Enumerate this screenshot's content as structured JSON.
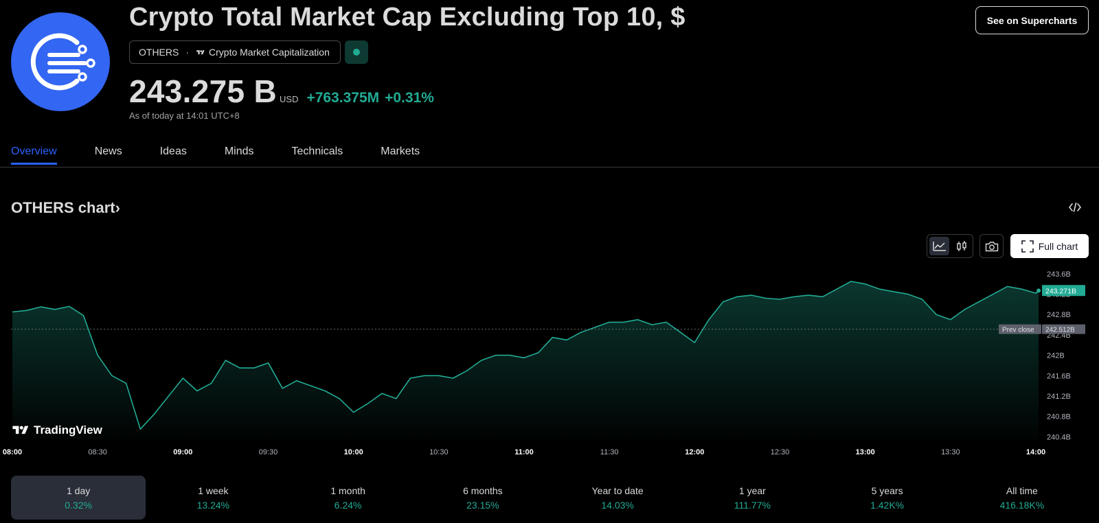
{
  "header": {
    "title": "Crypto Total Market Cap Excluding Top 10, $",
    "symbol": "OTHERS",
    "separator": "·",
    "source": "Crypto Market Capitalization",
    "price": "243.275",
    "price_suffix": "B",
    "currency": "USD",
    "change_abs": "+763.375M",
    "change_pct": "+0.31%",
    "as_of": "As of today at 14:01 UTC+8",
    "supercharts_button": "See on Supercharts",
    "status_color": "#22ab94"
  },
  "tabs": [
    {
      "label": "Overview",
      "active": true
    },
    {
      "label": "News"
    },
    {
      "label": "Ideas"
    },
    {
      "label": "Minds"
    },
    {
      "label": "Technicals"
    },
    {
      "label": "Markets"
    }
  ],
  "chart_section": {
    "heading": "OTHERS chart",
    "heading_arrow": "›",
    "full_chart_label": "Full chart",
    "brand": "TradingView",
    "icons": [
      "line-chart-icon",
      "candles-icon",
      "camera-icon",
      "fullscreen-icon",
      "embed-code-icon"
    ]
  },
  "chart_data": {
    "type": "area",
    "x": [
      "08:00",
      "08:05",
      "08:10",
      "08:15",
      "08:20",
      "08:25",
      "08:30",
      "08:35",
      "08:40",
      "08:45",
      "08:50",
      "08:55",
      "09:00",
      "09:05",
      "09:10",
      "09:15",
      "09:20",
      "09:25",
      "09:30",
      "09:35",
      "09:40",
      "09:45",
      "09:50",
      "09:55",
      "10:00",
      "10:05",
      "10:10",
      "10:15",
      "10:20",
      "10:25",
      "10:30",
      "10:35",
      "10:40",
      "10:45",
      "10:50",
      "10:55",
      "11:00",
      "11:05",
      "11:10",
      "11:15",
      "11:20",
      "11:25",
      "11:30",
      "11:35",
      "11:40",
      "11:45",
      "11:50",
      "11:55",
      "12:00",
      "12:05",
      "12:10",
      "12:15",
      "12:20",
      "12:25",
      "12:30",
      "12:35",
      "12:40",
      "12:45",
      "12:50",
      "12:55",
      "13:00",
      "13:05",
      "13:10",
      "13:15",
      "13:20",
      "13:25",
      "13:30",
      "13:35",
      "13:40",
      "13:45",
      "13:50",
      "13:55",
      "14:00",
      "14:01"
    ],
    "series": [
      {
        "values": [
          242.85,
          242.88,
          242.95,
          242.9,
          242.96,
          242.78,
          242.0,
          241.6,
          241.45,
          240.55,
          240.85,
          241.2,
          241.55,
          241.3,
          241.45,
          241.9,
          241.75,
          241.75,
          241.85,
          241.35,
          241.5,
          241.4,
          241.3,
          241.15,
          240.88,
          241.05,
          241.25,
          241.15,
          241.55,
          241.6,
          241.6,
          241.55,
          241.7,
          241.9,
          242.0,
          242.0,
          241.95,
          242.05,
          242.35,
          242.3,
          242.45,
          242.55,
          242.65,
          242.65,
          242.7,
          242.6,
          242.65,
          242.45,
          242.25,
          242.7,
          243.05,
          243.15,
          243.18,
          243.12,
          243.1,
          243.15,
          243.18,
          243.15,
          243.3,
          243.45,
          243.4,
          243.3,
          243.25,
          243.2,
          243.1,
          242.8,
          242.7,
          242.9,
          243.05,
          243.2,
          243.35,
          243.3,
          243.22,
          243.27
        ]
      }
    ],
    "yticks": [
      "243.6B",
      "243.2B",
      "242.8B",
      "242.4B",
      "242B",
      "241.6B",
      "241.2B",
      "240.8B",
      "240.4B"
    ],
    "ytick_values": [
      243.6,
      243.2,
      242.8,
      242.4,
      242.0,
      241.6,
      241.2,
      240.8,
      240.4
    ],
    "xticks": [
      {
        "label": "08:00",
        "time": "08:00",
        "bold": true
      },
      {
        "label": "08:30",
        "time": "08:30",
        "bold": false
      },
      {
        "label": "09:00",
        "time": "09:00",
        "bold": true
      },
      {
        "label": "09:30",
        "time": "09:30",
        "bold": false
      },
      {
        "label": "10:00",
        "time": "10:00",
        "bold": true
      },
      {
        "label": "10:30",
        "time": "10:30",
        "bold": false
      },
      {
        "label": "11:00",
        "time": "11:00",
        "bold": true
      },
      {
        "label": "11:30",
        "time": "11:30",
        "bold": false
      },
      {
        "label": "12:00",
        "time": "12:00",
        "bold": true
      },
      {
        "label": "12:30",
        "time": "12:30",
        "bold": false
      },
      {
        "label": "13:00",
        "time": "13:00",
        "bold": true
      },
      {
        "label": "13:30",
        "time": "13:30",
        "bold": false
      },
      {
        "label": "14:00",
        "time": "14:00",
        "bold": true
      }
    ],
    "ylim": [
      240.35,
      243.72
    ],
    "last_value": 243.271,
    "last_label": "243.271B",
    "prev_close": 242.512,
    "prev_close_label": "242.512B",
    "prev_close_text": "Prev close",
    "line_color": "#22ab94",
    "grid": false
  },
  "periods": [
    {
      "label": "1 day",
      "value": "0.32%",
      "active": true
    },
    {
      "label": "1 week",
      "value": "13.24%"
    },
    {
      "label": "1 month",
      "value": "6.24%"
    },
    {
      "label": "6 months",
      "value": "23.15%"
    },
    {
      "label": "Year to date",
      "value": "14.03%"
    },
    {
      "label": "1 year",
      "value": "111.77%"
    },
    {
      "label": "5 years",
      "value": "1.42K%"
    },
    {
      "label": "All time",
      "value": "416.18K%"
    }
  ]
}
